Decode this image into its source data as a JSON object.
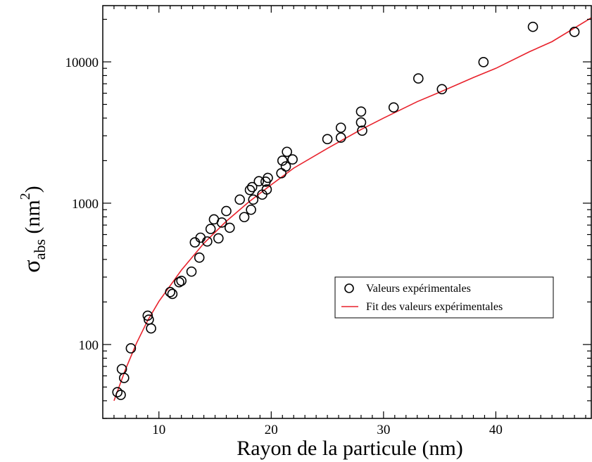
{
  "chart_data": {
    "type": "scatter",
    "xlabel": "Rayon de la particule (nm)",
    "ylabel": {
      "symbol": "σ",
      "subscript": "abs",
      "unit_open": " (nm",
      "unit_exp": "2",
      "unit_close": ")"
    },
    "xlim": [
      5,
      48.5
    ],
    "ylim": [
      30,
      25000
    ],
    "yscale": "log",
    "x_ticks": [
      10,
      20,
      30,
      40
    ],
    "x_tick_labels": [
      "10",
      "20",
      "30",
      "40"
    ],
    "y_ticks": [
      100,
      1000,
      10000
    ],
    "y_tick_labels": [
      "100",
      "1000",
      "10000"
    ],
    "grid": false,
    "legend_position": "center-right",
    "series": [
      {
        "name": "Valeurs expérimentales",
        "kind": "markers",
        "marker": "open-circle",
        "color": "#000000",
        "points": [
          [
            6.3,
            46
          ],
          [
            6.6,
            44
          ],
          [
            6.7,
            67
          ],
          [
            6.9,
            58
          ],
          [
            7.5,
            94
          ],
          [
            9.0,
            160
          ],
          [
            9.1,
            150
          ],
          [
            9.3,
            130
          ],
          [
            11.0,
            235
          ],
          [
            11.2,
            228
          ],
          [
            11.8,
            276
          ],
          [
            12.0,
            282
          ],
          [
            12.9,
            328
          ],
          [
            13.2,
            528
          ],
          [
            13.6,
            412
          ],
          [
            13.7,
            570
          ],
          [
            14.3,
            536
          ],
          [
            14.6,
            657
          ],
          [
            14.9,
            768
          ],
          [
            15.3,
            564
          ],
          [
            15.6,
            730
          ],
          [
            16.0,
            880
          ],
          [
            16.3,
            670
          ],
          [
            17.2,
            1060
          ],
          [
            17.6,
            797
          ],
          [
            18.1,
            1240
          ],
          [
            18.2,
            899
          ],
          [
            18.3,
            1300
          ],
          [
            18.4,
            1060
          ],
          [
            18.9,
            1430
          ],
          [
            19.2,
            1150
          ],
          [
            19.5,
            1420
          ],
          [
            19.6,
            1250
          ],
          [
            19.7,
            1510
          ],
          [
            20.9,
            1630
          ],
          [
            21.0,
            2000
          ],
          [
            21.3,
            1820
          ],
          [
            21.4,
            2310
          ],
          [
            21.9,
            2040
          ],
          [
            25.0,
            2840
          ],
          [
            26.2,
            3420
          ],
          [
            26.2,
            2910
          ],
          [
            28.0,
            4450
          ],
          [
            28.0,
            3730
          ],
          [
            28.1,
            3260
          ],
          [
            30.9,
            4760
          ],
          [
            33.1,
            7630
          ],
          [
            35.2,
            6410
          ],
          [
            38.9,
            9960
          ],
          [
            43.3,
            17700
          ],
          [
            47.0,
            16300
          ]
        ]
      },
      {
        "name": "Fit des valeurs expérimentales",
        "kind": "line",
        "color": "#e8212b",
        "fit_points": [
          [
            6.0,
            40
          ],
          [
            7.0,
            66
          ],
          [
            8.0,
            102
          ],
          [
            9.0,
            148
          ],
          [
            10.0,
            202
          ],
          [
            12.0,
            336
          ],
          [
            14.0,
            520
          ],
          [
            16.0,
            745
          ],
          [
            18.0,
            1020
          ],
          [
            20.0,
            1350
          ],
          [
            22.0,
            1770
          ],
          [
            25.0,
            2440
          ],
          [
            28.0,
            3320
          ],
          [
            30.0,
            4000
          ],
          [
            33.0,
            5230
          ],
          [
            35.0,
            6100
          ],
          [
            38.0,
            7750
          ],
          [
            40.0,
            9000
          ],
          [
            43.0,
            11800
          ],
          [
            45.0,
            13900
          ],
          [
            48.5,
            20500
          ]
        ]
      }
    ]
  }
}
